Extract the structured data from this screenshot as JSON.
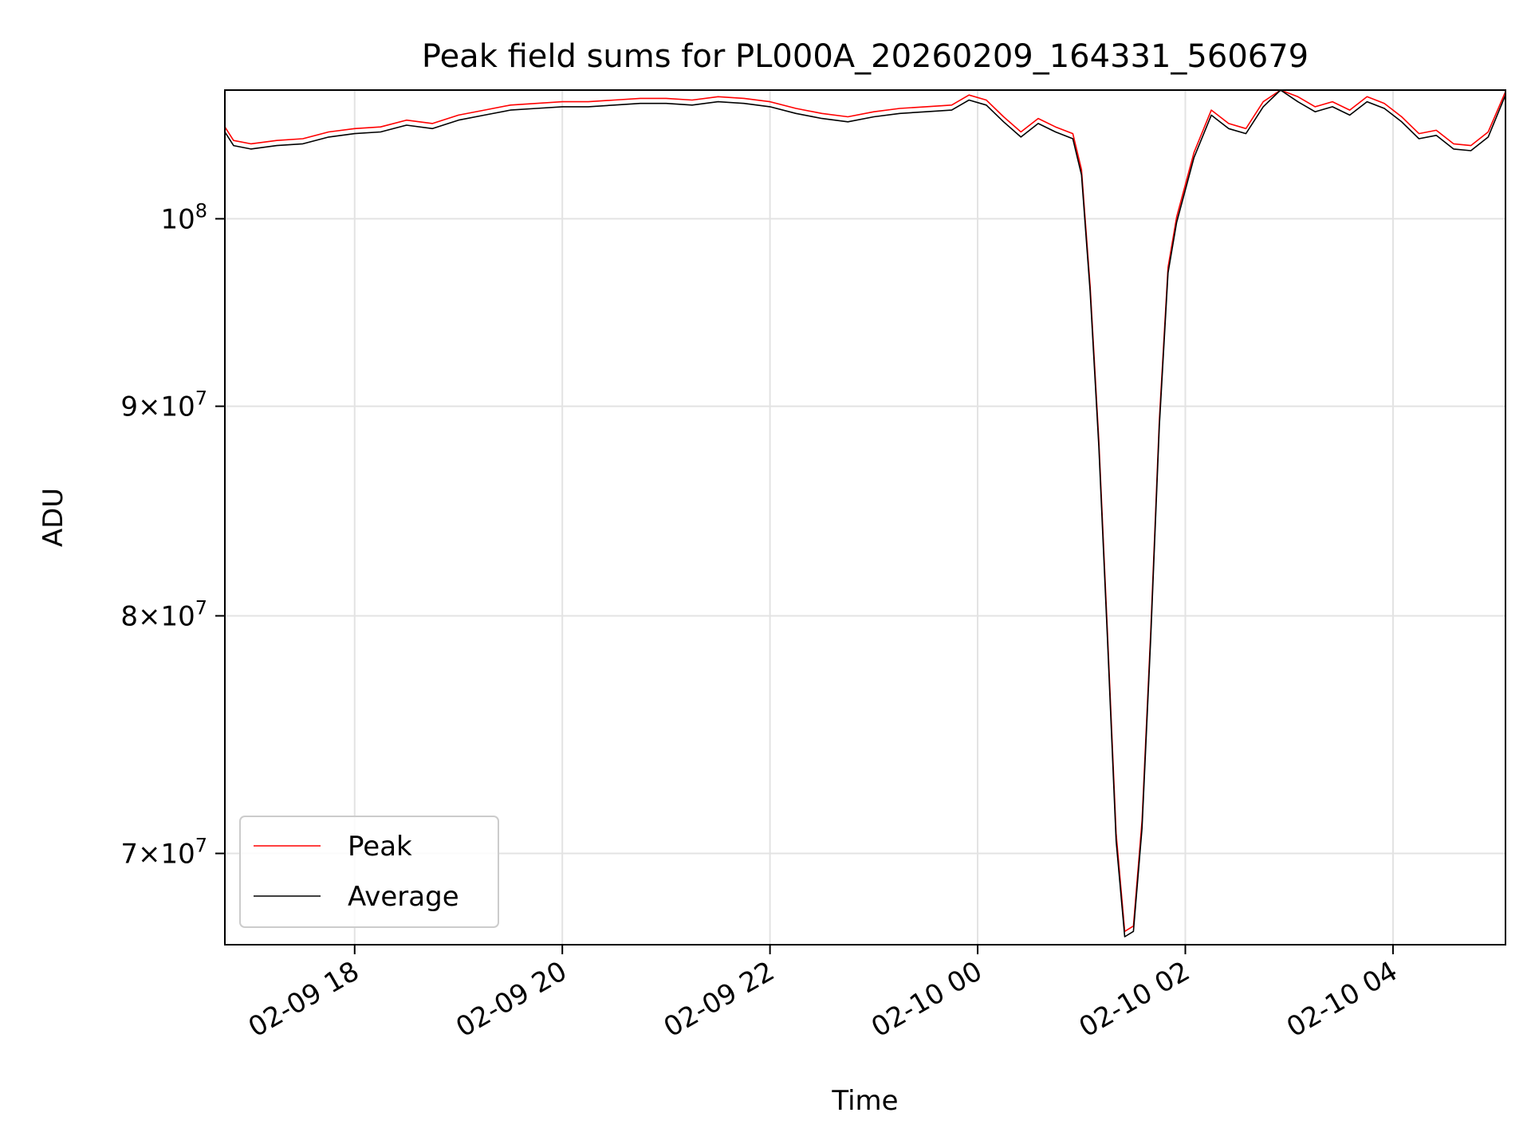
{
  "chart_data": {
    "type": "line",
    "title": "Peak field sums for PL000A_20260209_164331_560679",
    "xlabel": "Time",
    "ylabel": "ADU",
    "yscale": "log",
    "ylim": [
      66500000,
      107500000
    ],
    "xlim": [
      "2026-02-09 16:45",
      "2026-02-10 05:05"
    ],
    "grid": true,
    "legend_position": "lower-left",
    "x_ticks": [
      {
        "value": "2026-02-09 18:00",
        "label": "02-09 18"
      },
      {
        "value": "2026-02-09 20:00",
        "label": "02-09 20"
      },
      {
        "value": "2026-02-09 22:00",
        "label": "02-09 22"
      },
      {
        "value": "2026-02-10 00:00",
        "label": "02-10 00"
      },
      {
        "value": "2026-02-10 02:00",
        "label": "02-10 02"
      },
      {
        "value": "2026-02-10 04:00",
        "label": "02-10 04"
      }
    ],
    "y_ticks": [
      {
        "value": 70000000,
        "mantissa": "7",
        "exponent": "7"
      },
      {
        "value": 80000000,
        "mantissa": "8",
        "exponent": "7"
      },
      {
        "value": 90000000,
        "mantissa": "9",
        "exponent": "7"
      },
      {
        "value": 100000000,
        "mantissa": "",
        "exponent": "8"
      }
    ],
    "series": [
      {
        "name": "Peak",
        "color": "#ff0000"
      },
      {
        "name": "Average",
        "color": "#000000"
      }
    ],
    "x": [
      "2026-02-09 16:45",
      "2026-02-09 16:50",
      "2026-02-09 17:00",
      "2026-02-09 17:15",
      "2026-02-09 17:30",
      "2026-02-09 17:45",
      "2026-02-09 18:00",
      "2026-02-09 18:15",
      "2026-02-09 18:30",
      "2026-02-09 18:45",
      "2026-02-09 19:00",
      "2026-02-09 19:15",
      "2026-02-09 19:30",
      "2026-02-09 19:45",
      "2026-02-09 20:00",
      "2026-02-09 20:15",
      "2026-02-09 20:30",
      "2026-02-09 20:45",
      "2026-02-09 21:00",
      "2026-02-09 21:15",
      "2026-02-09 21:30",
      "2026-02-09 21:45",
      "2026-02-09 22:00",
      "2026-02-09 22:15",
      "2026-02-09 22:30",
      "2026-02-09 22:45",
      "2026-02-09 23:00",
      "2026-02-09 23:15",
      "2026-02-09 23:30",
      "2026-02-09 23:45",
      "2026-02-09 23:55",
      "2026-02-10 00:05",
      "2026-02-10 00:15",
      "2026-02-10 00:25",
      "2026-02-10 00:35",
      "2026-02-10 00:45",
      "2026-02-10 00:55",
      "2026-02-10 01:00",
      "2026-02-10 01:05",
      "2026-02-10 01:10",
      "2026-02-10 01:15",
      "2026-02-10 01:20",
      "2026-02-10 01:25",
      "2026-02-10 01:30",
      "2026-02-10 01:35",
      "2026-02-10 01:40",
      "2026-02-10 01:45",
      "2026-02-10 01:50",
      "2026-02-10 01:55",
      "2026-02-10 02:05",
      "2026-02-10 02:15",
      "2026-02-10 02:25",
      "2026-02-10 02:35",
      "2026-02-10 02:45",
      "2026-02-10 02:55",
      "2026-02-10 03:05",
      "2026-02-10 03:15",
      "2026-02-10 03:25",
      "2026-02-10 03:35",
      "2026-02-10 03:45",
      "2026-02-10 03:55",
      "2026-02-10 04:05",
      "2026-02-10 04:15",
      "2026-02-10 04:25",
      "2026-02-10 04:35",
      "2026-02-10 04:45",
      "2026-02-10 04:55",
      "2026-02-10 05:05"
    ],
    "average": [
      105000000,
      104200000,
      104000000,
      104200000,
      104300000,
      104700000,
      104900000,
      105000000,
      105400000,
      105200000,
      105700000,
      106000000,
      106300000,
      106400000,
      106500000,
      106500000,
      106600000,
      106700000,
      106700000,
      106600000,
      106800000,
      106700000,
      106500000,
      106100000,
      105800000,
      105600000,
      105900000,
      106100000,
      106200000,
      106300000,
      106900000,
      106600000,
      105600000,
      104700000,
      105500000,
      105000000,
      104600000,
      102500000,
      96000000,
      88000000,
      79000000,
      70500000,
      66800000,
      67000000,
      71000000,
      79000000,
      89000000,
      97000000,
      99800000,
      103500000,
      106000000,
      105200000,
      104900000,
      106500000,
      107500000,
      106800000,
      106200000,
      106500000,
      106000000,
      106800000,
      106400000,
      105600000,
      104600000,
      104800000,
      104000000,
      103900000,
      104700000,
      107200000
    ],
    "peak": [
      105300000,
      104500000,
      104300000,
      104500000,
      104600000,
      105000000,
      105200000,
      105300000,
      105700000,
      105500000,
      106000000,
      106300000,
      106600000,
      106700000,
      106800000,
      106800000,
      106900000,
      107000000,
      107000000,
      106900000,
      107100000,
      107000000,
      106800000,
      106400000,
      106100000,
      105900000,
      106200000,
      106400000,
      106500000,
      106600000,
      107200000,
      106900000,
      105900000,
      105000000,
      105800000,
      105300000,
      104900000,
      102800000,
      96300000,
      88300000,
      79300000,
      70800000,
      67000000,
      67200000,
      71300000,
      79300000,
      89300000,
      97300000,
      100100000,
      103800000,
      106300000,
      105500000,
      105200000,
      106800000,
      107500000,
      107100000,
      106500000,
      106800000,
      106300000,
      107100000,
      106700000,
      105900000,
      104900000,
      105100000,
      104300000,
      104200000,
      105000000,
      107400000
    ]
  }
}
